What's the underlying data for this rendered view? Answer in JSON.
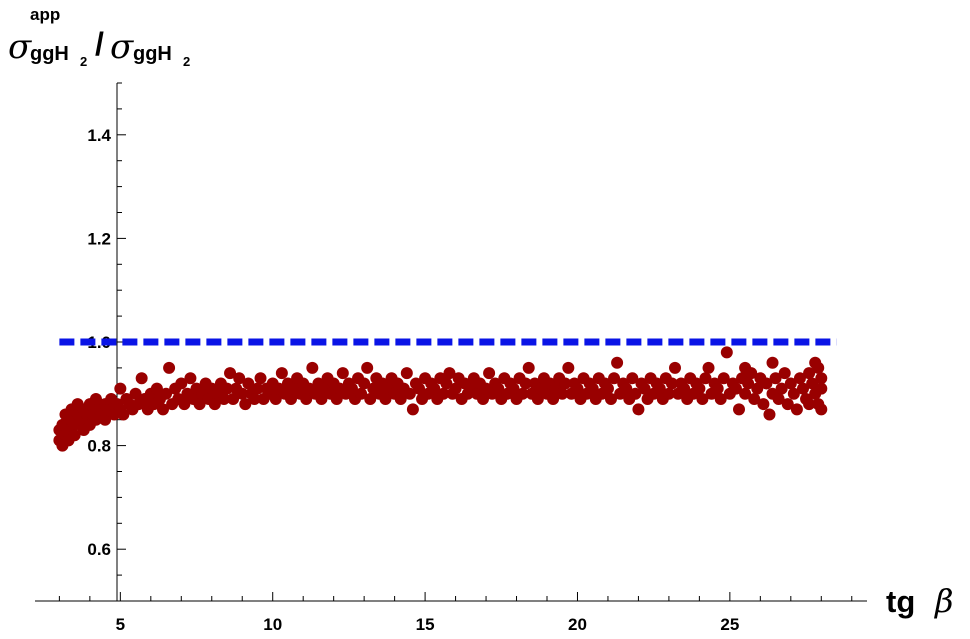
{
  "chart_data": {
    "type": "scatter",
    "ylabel": {
      "symbol": "σ",
      "numerator_sup": "app",
      "numerator_sub": "ggH",
      "numerator_sub_index": "2",
      "slash": "/",
      "denominator_symbol": "σ",
      "denominator_sub": "ggH",
      "denominator_sub_index": "2"
    },
    "xlabel": {
      "text": "tg",
      "symbol": "β"
    },
    "xlim": [
      2.2,
      29.5
    ],
    "ylim": [
      0.5,
      1.5
    ],
    "x_ticks": [
      5,
      10,
      15,
      20,
      25
    ],
    "y_ticks": [
      0.6,
      0.8,
      1.0,
      1.2,
      1.4
    ],
    "x_tick_labels": [
      "5",
      "10",
      "15",
      "20",
      "25"
    ],
    "y_tick_labels": [
      "0.6",
      "0.8",
      "1.0",
      "1.2",
      "1.4"
    ],
    "reference_line": {
      "y": 1.0,
      "x_range": [
        3.0,
        28.5
      ],
      "style": "dashed",
      "color": "#0a14e6"
    },
    "series": [
      {
        "marker_color": "#990000",
        "points": [
          [
            3.0,
            0.81
          ],
          [
            3.0,
            0.83
          ],
          [
            3.1,
            0.8
          ],
          [
            3.1,
            0.84
          ],
          [
            3.2,
            0.82
          ],
          [
            3.2,
            0.86
          ],
          [
            3.3,
            0.83
          ],
          [
            3.3,
            0.81
          ],
          [
            3.4,
            0.85
          ],
          [
            3.4,
            0.87
          ],
          [
            3.5,
            0.84
          ],
          [
            3.5,
            0.82
          ],
          [
            3.6,
            0.86
          ],
          [
            3.6,
            0.88
          ],
          [
            3.7,
            0.85
          ],
          [
            3.8,
            0.83
          ],
          [
            3.8,
            0.87
          ],
          [
            3.9,
            0.86
          ],
          [
            4.0,
            0.84
          ],
          [
            4.0,
            0.88
          ],
          [
            4.1,
            0.86
          ],
          [
            4.2,
            0.85
          ],
          [
            4.2,
            0.89
          ],
          [
            4.3,
            0.87
          ],
          [
            4.4,
            0.86
          ],
          [
            4.5,
            0.88
          ],
          [
            4.5,
            0.85
          ],
          [
            4.6,
            0.87
          ],
          [
            4.7,
            0.89
          ],
          [
            4.8,
            0.86
          ],
          [
            4.9,
            0.88
          ],
          [
            5.0,
            0.87
          ],
          [
            5.0,
            0.91
          ],
          [
            5.1,
            0.86
          ],
          [
            5.2,
            0.89
          ],
          [
            5.3,
            0.88
          ],
          [
            5.4,
            0.87
          ],
          [
            5.5,
            0.9
          ],
          [
            5.6,
            0.88
          ],
          [
            5.7,
            0.93
          ],
          [
            5.8,
            0.89
          ],
          [
            5.9,
            0.87
          ],
          [
            6.0,
            0.9
          ],
          [
            6.1,
            0.88
          ],
          [
            6.2,
            0.91
          ],
          [
            6.3,
            0.89
          ],
          [
            6.4,
            0.87
          ],
          [
            6.5,
            0.9
          ],
          [
            6.6,
            0.95
          ],
          [
            6.7,
            0.88
          ],
          [
            6.8,
            0.91
          ],
          [
            6.9,
            0.89
          ],
          [
            7.0,
            0.92
          ],
          [
            7.1,
            0.88
          ],
          [
            7.2,
            0.9
          ],
          [
            7.3,
            0.93
          ],
          [
            7.4,
            0.89
          ],
          [
            7.5,
            0.91
          ],
          [
            7.6,
            0.88
          ],
          [
            7.7,
            0.9
          ],
          [
            7.8,
            0.92
          ],
          [
            7.9,
            0.89
          ],
          [
            8.0,
            0.91
          ],
          [
            8.1,
            0.88
          ],
          [
            8.2,
            0.9
          ],
          [
            8.3,
            0.92
          ],
          [
            8.4,
            0.89
          ],
          [
            8.5,
            0.91
          ],
          [
            8.6,
            0.94
          ],
          [
            8.7,
            0.89
          ],
          [
            8.8,
            0.91
          ],
          [
            8.9,
            0.93
          ],
          [
            9.0,
            0.9
          ],
          [
            9.1,
            0.88
          ],
          [
            9.2,
            0.92
          ],
          [
            9.3,
            0.9
          ],
          [
            9.4,
            0.89
          ],
          [
            9.5,
            0.91
          ],
          [
            9.6,
            0.93
          ],
          [
            9.7,
            0.89
          ],
          [
            9.8,
            0.91
          ],
          [
            9.9,
            0.9
          ],
          [
            10.0,
            0.92
          ],
          [
            10.1,
            0.89
          ],
          [
            10.2,
            0.91
          ],
          [
            10.3,
            0.94
          ],
          [
            10.4,
            0.9
          ],
          [
            10.5,
            0.92
          ],
          [
            10.6,
            0.89
          ],
          [
            10.7,
            0.91
          ],
          [
            10.8,
            0.93
          ],
          [
            10.9,
            0.9
          ],
          [
            11.0,
            0.92
          ],
          [
            11.1,
            0.89
          ],
          [
            11.2,
            0.91
          ],
          [
            11.3,
            0.95
          ],
          [
            11.4,
            0.9
          ],
          [
            11.5,
            0.92
          ],
          [
            11.6,
            0.89
          ],
          [
            11.7,
            0.91
          ],
          [
            11.8,
            0.93
          ],
          [
            11.9,
            0.9
          ],
          [
            12.0,
            0.92
          ],
          [
            12.1,
            0.89
          ],
          [
            12.2,
            0.91
          ],
          [
            12.3,
            0.94
          ],
          [
            12.4,
            0.9
          ],
          [
            12.5,
            0.92
          ],
          [
            12.6,
            0.91
          ],
          [
            12.7,
            0.89
          ],
          [
            12.8,
            0.93
          ],
          [
            12.9,
            0.9
          ],
          [
            13.0,
            0.92
          ],
          [
            13.1,
            0.95
          ],
          [
            13.2,
            0.89
          ],
          [
            13.3,
            0.91
          ],
          [
            13.4,
            0.93
          ],
          [
            13.5,
            0.9
          ],
          [
            13.6,
            0.92
          ],
          [
            13.7,
            0.89
          ],
          [
            13.8,
            0.91
          ],
          [
            13.9,
            0.93
          ],
          [
            14.0,
            0.9
          ],
          [
            14.1,
            0.92
          ],
          [
            14.2,
            0.89
          ],
          [
            14.3,
            0.91
          ],
          [
            14.4,
            0.94
          ],
          [
            14.5,
            0.9
          ],
          [
            14.6,
            0.87
          ],
          [
            14.7,
            0.92
          ],
          [
            14.8,
            0.91
          ],
          [
            14.9,
            0.89
          ],
          [
            15.0,
            0.93
          ],
          [
            15.1,
            0.9
          ],
          [
            15.2,
            0.92
          ],
          [
            15.3,
            0.91
          ],
          [
            15.4,
            0.89
          ],
          [
            15.5,
            0.93
          ],
          [
            15.6,
            0.9
          ],
          [
            15.7,
            0.92
          ],
          [
            15.8,
            0.94
          ],
          [
            15.9,
            0.9
          ],
          [
            16.0,
            0.91
          ],
          [
            16.1,
            0.93
          ],
          [
            16.2,
            0.89
          ],
          [
            16.3,
            0.92
          ],
          [
            16.4,
            0.9
          ],
          [
            16.5,
            0.91
          ],
          [
            16.6,
            0.93
          ],
          [
            16.7,
            0.9
          ],
          [
            16.8,
            0.92
          ],
          [
            16.9,
            0.89
          ],
          [
            17.0,
            0.91
          ],
          [
            17.1,
            0.94
          ],
          [
            17.2,
            0.9
          ],
          [
            17.3,
            0.92
          ],
          [
            17.4,
            0.91
          ],
          [
            17.5,
            0.89
          ],
          [
            17.6,
            0.93
          ],
          [
            17.7,
            0.9
          ],
          [
            17.8,
            0.92
          ],
          [
            17.9,
            0.91
          ],
          [
            18.0,
            0.89
          ],
          [
            18.1,
            0.93
          ],
          [
            18.2,
            0.9
          ],
          [
            18.3,
            0.92
          ],
          [
            18.4,
            0.95
          ],
          [
            18.5,
            0.9
          ],
          [
            18.6,
            0.92
          ],
          [
            18.7,
            0.89
          ],
          [
            18.8,
            0.91
          ],
          [
            18.9,
            0.93
          ],
          [
            19.0,
            0.9
          ],
          [
            19.1,
            0.92
          ],
          [
            19.2,
            0.89
          ],
          [
            19.3,
            0.91
          ],
          [
            19.4,
            0.93
          ],
          [
            19.5,
            0.9
          ],
          [
            19.6,
            0.92
          ],
          [
            19.7,
            0.95
          ],
          [
            19.8,
            0.9
          ],
          [
            19.9,
            0.92
          ],
          [
            20.0,
            0.91
          ],
          [
            20.1,
            0.89
          ],
          [
            20.2,
            0.93
          ],
          [
            20.3,
            0.9
          ],
          [
            20.4,
            0.92
          ],
          [
            20.5,
            0.91
          ],
          [
            20.6,
            0.89
          ],
          [
            20.7,
            0.93
          ],
          [
            20.8,
            0.9
          ],
          [
            20.9,
            0.92
          ],
          [
            21.0,
            0.91
          ],
          [
            21.1,
            0.89
          ],
          [
            21.2,
            0.93
          ],
          [
            21.3,
            0.96
          ],
          [
            21.4,
            0.9
          ],
          [
            21.5,
            0.92
          ],
          [
            21.6,
            0.91
          ],
          [
            21.7,
            0.89
          ],
          [
            21.8,
            0.93
          ],
          [
            21.9,
            0.9
          ],
          [
            22.0,
            0.87
          ],
          [
            22.1,
            0.92
          ],
          [
            22.2,
            0.91
          ],
          [
            22.3,
            0.89
          ],
          [
            22.4,
            0.93
          ],
          [
            22.5,
            0.9
          ],
          [
            22.6,
            0.92
          ],
          [
            22.7,
            0.91
          ],
          [
            22.8,
            0.89
          ],
          [
            22.9,
            0.93
          ],
          [
            23.0,
            0.9
          ],
          [
            23.1,
            0.92
          ],
          [
            23.2,
            0.95
          ],
          [
            23.3,
            0.9
          ],
          [
            23.4,
            0.92
          ],
          [
            23.5,
            0.91
          ],
          [
            23.6,
            0.89
          ],
          [
            23.7,
            0.93
          ],
          [
            23.8,
            0.9
          ],
          [
            23.9,
            0.92
          ],
          [
            24.0,
            0.91
          ],
          [
            24.1,
            0.89
          ],
          [
            24.2,
            0.93
          ],
          [
            24.3,
            0.95
          ],
          [
            24.4,
            0.9
          ],
          [
            24.5,
            0.92
          ],
          [
            24.6,
            0.91
          ],
          [
            24.7,
            0.89
          ],
          [
            24.8,
            0.93
          ],
          [
            24.9,
            0.98
          ],
          [
            25.0,
            0.9
          ],
          [
            25.1,
            0.92
          ],
          [
            25.2,
            0.91
          ],
          [
            25.3,
            0.87
          ],
          [
            25.4,
            0.93
          ],
          [
            25.5,
            0.9
          ],
          [
            25.6,
            0.92
          ],
          [
            25.7,
            0.94
          ],
          [
            25.8,
            0.89
          ],
          [
            25.9,
            0.91
          ],
          [
            26.0,
            0.93
          ],
          [
            26.1,
            0.88
          ],
          [
            26.2,
            0.92
          ],
          [
            26.3,
            0.86
          ],
          [
            26.4,
            0.9
          ],
          [
            26.5,
            0.93
          ],
          [
            26.6,
            0.89
          ],
          [
            26.7,
            0.91
          ],
          [
            26.8,
            0.94
          ],
          [
            26.9,
            0.88
          ],
          [
            27.0,
            0.92
          ],
          [
            27.1,
            0.9
          ],
          [
            27.2,
            0.87
          ],
          [
            27.3,
            0.93
          ],
          [
            27.4,
            0.91
          ],
          [
            27.5,
            0.89
          ],
          [
            27.6,
            0.94
          ],
          [
            27.7,
            0.92
          ],
          [
            27.8,
            0.9
          ],
          [
            27.9,
            0.88
          ],
          [
            28.0,
            0.93
          ],
          [
            28.0,
            0.87
          ],
          [
            27.9,
            0.95
          ],
          [
            28.0,
            0.91
          ],
          [
            27.8,
            0.96
          ],
          [
            27.6,
            0.88
          ],
          [
            26.4,
            0.96
          ],
          [
            25.5,
            0.95
          ]
        ]
      }
    ]
  }
}
